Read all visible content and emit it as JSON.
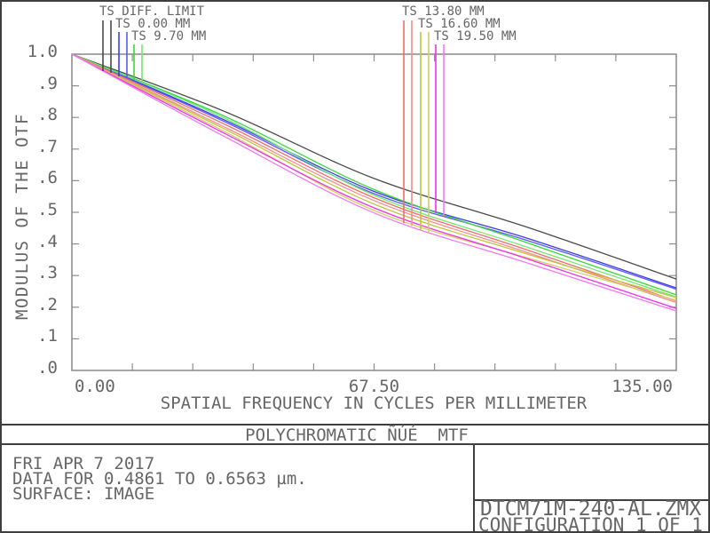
{
  "chart_data": {
    "type": "line",
    "title": "POLYCHROMATIC ÑÚÉ  MTF",
    "xlabel": "SPATIAL FREQUENCY IN CYCLES PER MILLIMETER",
    "ylabel": "MODULUS OF THE OTF",
    "xlim": [
      0,
      135
    ],
    "ylim": [
      0.0,
      1.0
    ],
    "grid": false,
    "x_tick_labels": [
      "0.00",
      "67.50",
      "135.00"
    ],
    "y_tick_labels": [
      "1.0",
      ".9",
      ".8",
      ".7",
      ".6",
      ".5",
      ".4",
      ".3",
      ".2",
      ".1",
      ".0"
    ],
    "minor_divisions_x": 10,
    "minor_divisions_y": 10,
    "x_samples": [
      0,
      33.75,
      67.5,
      101.25,
      135
    ],
    "legend": [
      {
        "label": "TS DIFF. LIMIT",
        "color": "#4a4a4a"
      },
      {
        "label": "TS 0.00 MM",
        "color": "#4a4ae8"
      },
      {
        "label": "TS 9.70 MM",
        "color": "#4cdc4c"
      },
      {
        "label": "TS 13.80 MM",
        "color": "#f07474"
      },
      {
        "label": "TS 16.60 MM",
        "color": "#c6c63e"
      },
      {
        "label": "TS 19.50 MM",
        "color": "#f040f0"
      }
    ],
    "series": [
      {
        "name": "TS DIFF. LIMIT",
        "color": "#4a4a4a",
        "values": [
          1.0,
          0.821,
          0.607,
          0.455,
          0.289
        ]
      },
      {
        "name": "TS 0.00 MM (tangential)",
        "color": "#3c3ce8",
        "values": [
          1.0,
          0.794,
          0.566,
          0.42,
          0.261
        ]
      },
      {
        "name": "TS 0.00 MM (sagittal)",
        "color": "#5a5af2",
        "values": [
          1.0,
          0.789,
          0.559,
          0.413,
          0.257
        ]
      },
      {
        "name": "TS 9.70 MM (tangential)",
        "color": "#37d837",
        "values": [
          1.0,
          0.806,
          0.572,
          0.406,
          0.239
        ]
      },
      {
        "name": "TS 9.70 MM (sagittal)",
        "color": "#6fe86f",
        "values": [
          1.0,
          0.8,
          0.554,
          0.392,
          0.232
        ]
      },
      {
        "name": "TS 13.80 MM (tangential)",
        "color": "#f06a6a",
        "values": [
          1.0,
          0.781,
          0.546,
          0.383,
          0.22
        ]
      },
      {
        "name": "TS 13.80 MM (sagittal)",
        "color": "#f68c8c",
        "values": [
          1.0,
          0.772,
          0.537,
          0.375,
          0.215
        ]
      },
      {
        "name": "TS 16.60 MM (tangential)",
        "color": "#c2c23e",
        "values": [
          1.0,
          0.766,
          0.526,
          0.37,
          0.23
        ]
      },
      {
        "name": "TS 16.60 MM (sagittal)",
        "color": "#cfcf62",
        "values": [
          1.0,
          0.758,
          0.506,
          0.358,
          0.222
        ]
      },
      {
        "name": "TS 19.50 MM (tangential)",
        "color": "#ee30ee",
        "values": [
          1.0,
          0.752,
          0.514,
          0.355,
          0.196
        ]
      },
      {
        "name": "TS 19.50 MM (sagittal)",
        "color": "#f776f7",
        "values": [
          1.0,
          0.742,
          0.498,
          0.342,
          0.188
        ]
      }
    ]
  },
  "footer": {
    "date": "FRI APR 7 2017",
    "data_range": "DATA FOR 0.4861 TO 0.6563 µm.",
    "surface": "SURFACE: IMAGE",
    "filename": "DTCM71M-240-AL.ZMX",
    "configuration": "CONFIGURATION 1 OF 1"
  }
}
